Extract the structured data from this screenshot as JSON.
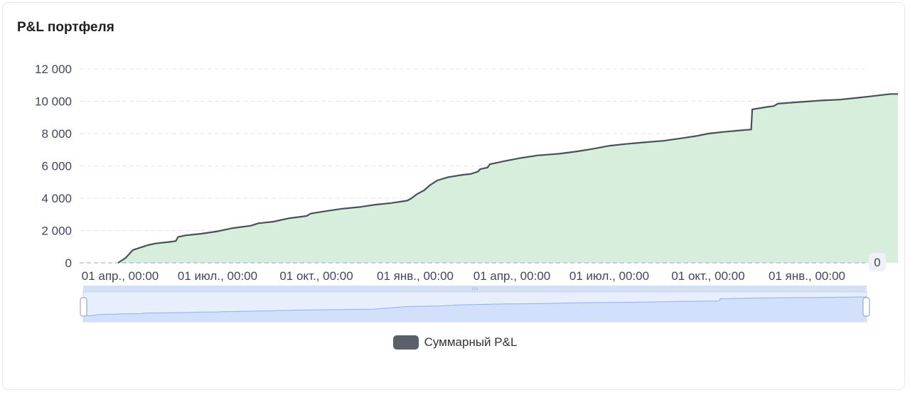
{
  "card": {
    "title": "P&L портфеля"
  },
  "colors": {
    "line": "#4a5058",
    "area": "#d7eedc",
    "grid": "#dfe3e8",
    "zoom_bg": "#e7eefc",
    "zoom_fill": "#d2e0fb",
    "zoom_line": "#8fb0ec"
  },
  "chart_data": {
    "type": "area",
    "title": "P&L портфеля",
    "xlabel": "",
    "ylabel": "",
    "ylim": [
      0,
      12000
    ],
    "yticks": [
      "0",
      "2 000",
      "4 000",
      "6 000",
      "8 000",
      "10 000",
      "12 000"
    ],
    "xticks": [
      "01 апр., 00:00",
      "01 июл., 00:00",
      "01 окт., 00:00",
      "01 янв., 00:00",
      "01 апр., 00:00",
      "01 июл., 00:00",
      "01 окт., 00:00",
      "01 янв., 00:00"
    ],
    "right_axis_label": "0",
    "grid": true,
    "legend_position": "bottom-center",
    "series": [
      {
        "name": "Суммарный P&L",
        "points": [
          [
            "2023-03-30",
            0
          ],
          [
            "2023-04-06",
            300
          ],
          [
            "2023-04-13",
            800
          ],
          [
            "2023-04-20",
            950
          ],
          [
            "2023-04-27",
            1100
          ],
          [
            "2023-05-04",
            1200
          ],
          [
            "2023-05-18",
            1300
          ],
          [
            "2023-05-23",
            1350
          ],
          [
            "2023-05-25",
            1600
          ],
          [
            "2023-06-01",
            1700
          ],
          [
            "2023-06-15",
            1800
          ],
          [
            "2023-07-01",
            1950
          ],
          [
            "2023-07-15",
            2150
          ],
          [
            "2023-08-01",
            2300
          ],
          [
            "2023-08-08",
            2450
          ],
          [
            "2023-08-22",
            2550
          ],
          [
            "2023-09-05",
            2750
          ],
          [
            "2023-09-22",
            2900
          ],
          [
            "2023-09-26",
            3050
          ],
          [
            "2023-10-10",
            3200
          ],
          [
            "2023-10-25",
            3350
          ],
          [
            "2023-11-10",
            3450
          ],
          [
            "2023-11-25",
            3600
          ],
          [
            "2023-12-10",
            3700
          ],
          [
            "2023-12-25",
            3850
          ],
          [
            "2023-12-29",
            4000
          ],
          [
            "2024-01-03",
            4250
          ],
          [
            "2024-01-10",
            4500
          ],
          [
            "2024-01-15",
            4800
          ],
          [
            "2024-01-22",
            5100
          ],
          [
            "2024-02-01",
            5300
          ],
          [
            "2024-02-15",
            5450
          ],
          [
            "2024-02-22",
            5500
          ],
          [
            "2024-02-29",
            5650
          ],
          [
            "2024-03-02",
            5800
          ],
          [
            "2024-03-09",
            5900
          ],
          [
            "2024-03-11",
            6100
          ],
          [
            "2024-03-25",
            6300
          ],
          [
            "2024-04-10",
            6500
          ],
          [
            "2024-04-25",
            6650
          ],
          [
            "2024-05-15",
            6750
          ],
          [
            "2024-06-01",
            6900
          ],
          [
            "2024-06-15",
            7050
          ],
          [
            "2024-07-01",
            7250
          ],
          [
            "2024-07-15",
            7350
          ],
          [
            "2024-08-01",
            7450
          ],
          [
            "2024-08-20",
            7550
          ],
          [
            "2024-09-05",
            7700
          ],
          [
            "2024-09-20",
            7850
          ],
          [
            "2024-10-01",
            8000
          ],
          [
            "2024-10-15",
            8100
          ],
          [
            "2024-11-01",
            8200
          ],
          [
            "2024-11-10",
            8250
          ],
          [
            "2024-11-11",
            9500
          ],
          [
            "2024-11-25",
            9650
          ],
          [
            "2024-12-01",
            9700
          ],
          [
            "2024-12-05",
            9850
          ],
          [
            "2024-12-25",
            9950
          ],
          [
            "2025-01-15",
            10050
          ],
          [
            "2025-02-01",
            10100
          ],
          [
            "2025-02-15",
            10200
          ],
          [
            "2025-03-01",
            10300
          ],
          [
            "2025-03-20",
            10450
          ],
          [
            "2025-03-27",
            10450
          ]
        ]
      }
    ]
  }
}
